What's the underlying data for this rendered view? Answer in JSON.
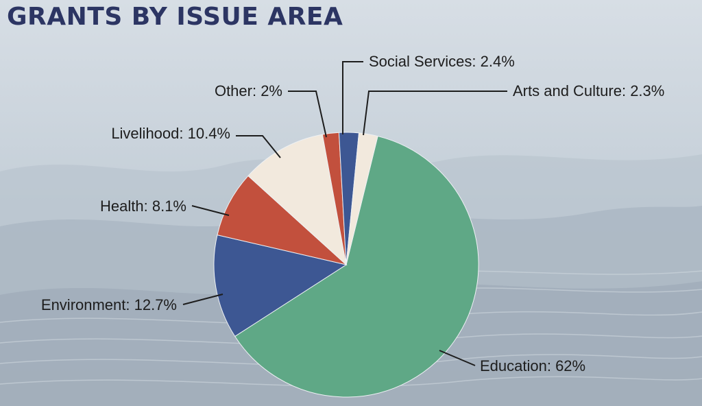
{
  "page": {
    "title": "GRANTS BY ISSUE AREA",
    "background_color": "#c9d3dc",
    "title_color": "#2c3563"
  },
  "chart_data": {
    "type": "pie",
    "title": "GRANTS BY ISSUE AREA",
    "unit": "%",
    "start_angle_deg": 13.8,
    "direction": "clockwise",
    "slices": [
      {
        "name": "Education",
        "value": 62,
        "label": "Education: 62%",
        "color": "#5fa886"
      },
      {
        "name": "Environment",
        "value": 12.7,
        "label": "Environment: 12.7%",
        "color": "#3d5793"
      },
      {
        "name": "Health",
        "value": 8.1,
        "label": "Health: 8.1%",
        "color": "#c2503d"
      },
      {
        "name": "Livelihood",
        "value": 10.4,
        "label": "Livelihood: 10.4%",
        "color": "#f2e9dd"
      },
      {
        "name": "Other",
        "value": 2,
        "label": "Other: 2%",
        "color": "#c2503d"
      },
      {
        "name": "Social Services",
        "value": 2.4,
        "label": "Social Services: 2.4%",
        "color": "#3d5793"
      },
      {
        "name": "Arts and Culture",
        "value": 2.3,
        "label": "Arts and Culture: 2.3%",
        "color": "#f2e9dd"
      }
    ]
  }
}
